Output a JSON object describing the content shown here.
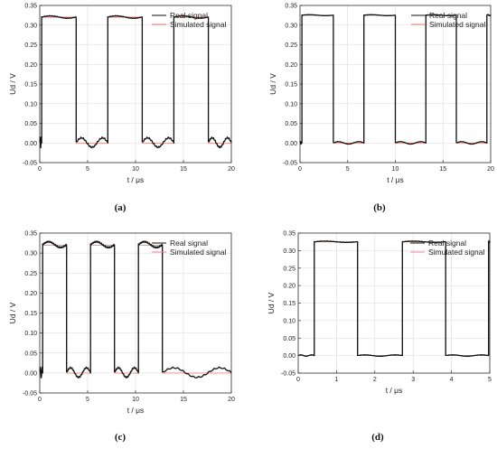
{
  "chart_data": [
    {
      "type": "line",
      "caption": "(a)",
      "xlabel": "t / μs",
      "ylabel": "Ud / V",
      "xlim": [
        0,
        20
      ],
      "ylim": [
        -0.05,
        0.35
      ],
      "xticks": [
        "0",
        "5",
        "10",
        "15",
        "20"
      ],
      "yticks": [
        "-0.05",
        "0.00",
        "0.05",
        "0.10",
        "0.15",
        "0.20",
        "0.25",
        "0.30",
        "0.35"
      ],
      "legend_position": "top-right",
      "signal": {
        "high": 0.32,
        "low": 0.0,
        "period": 6.9,
        "rise_times": [
          0.2,
          7.1,
          14.0
        ],
        "fall_times": [
          3.8,
          10.7,
          17.6
        ],
        "end": 20
      },
      "real_ripple": {
        "high_amplitude": 0.005,
        "low_amplitude": 0.012
      },
      "series": [
        {
          "name": "Real signal",
          "color": "#111111"
        },
        {
          "name": "Simulated signal",
          "color": "#e8867f"
        }
      ]
    },
    {
      "type": "line",
      "caption": "(b)",
      "xlabel": "t / μs",
      "ylabel": "Ud / V",
      "xlim": [
        0,
        20
      ],
      "ylim": [
        -0.05,
        0.35
      ],
      "xticks": [
        "0",
        "5",
        "10",
        "15",
        "20"
      ],
      "yticks": [
        "-0.05",
        "0.00",
        "0.05",
        "0.10",
        "0.15",
        "0.20",
        "0.25",
        "0.30",
        "0.35"
      ],
      "legend_position": "top-right",
      "signal": {
        "high": 0.325,
        "low": 0.0,
        "period": 6.5,
        "rise_times": [
          0.2,
          6.7,
          13.2,
          19.6
        ],
        "fall_times": [
          3.5,
          10.0,
          16.4
        ],
        "end": 20
      },
      "real_ripple": {
        "high_amplitude": 0.002,
        "low_amplitude": 0.003
      },
      "series": [
        {
          "name": "Real signal",
          "color": "#111111"
        },
        {
          "name": "Simulated signal",
          "color": "#e8867f"
        }
      ]
    },
    {
      "type": "line",
      "caption": "(c)",
      "xlabel": "t / μs",
      "ylabel": "Ud / V",
      "xlim": [
        0,
        20
      ],
      "ylim": [
        -0.05,
        0.35
      ],
      "xticks": [
        "0",
        "5",
        "10",
        "15",
        "20"
      ],
      "yticks": [
        "-0.05",
        "0.00",
        "0.05",
        "0.10",
        "0.15",
        "0.20",
        "0.25",
        "0.30",
        "0.35"
      ],
      "legend_position": "top-right",
      "signal": {
        "high": 0.32,
        "low": 0.0,
        "period": 5.0,
        "rise_times": [
          0.3,
          5.3,
          10.3
        ],
        "fall_times": [
          2.8,
          7.8,
          12.8
        ],
        "end": 20
      },
      "real_ripple": {
        "high_amplitude": 0.012,
        "low_amplitude": 0.012
      },
      "series": [
        {
          "name": "Real signal",
          "color": "#111111"
        },
        {
          "name": "Simulated signal",
          "color": "#e8867f"
        }
      ]
    },
    {
      "type": "line",
      "caption": "(d)",
      "xlabel": "t / μs",
      "ylabel": "Ud / V",
      "xlim": [
        0,
        5
      ],
      "ylim": [
        -0.05,
        0.35
      ],
      "xticks": [
        "0",
        "1",
        "2",
        "3",
        "4",
        "5"
      ],
      "yticks": [
        "-0.05",
        "0.00",
        "0.05",
        "0.10",
        "0.15",
        "0.20",
        "0.25",
        "0.30",
        "0.35"
      ],
      "legend_position": "top-right",
      "signal": {
        "high": 0.325,
        "low": 0.0,
        "period": 2.3,
        "rise_times": [
          0.42,
          2.72,
          4.97
        ],
        "fall_times": [
          1.55,
          3.85
        ],
        "end": 5
      },
      "real_ripple": {
        "high_amplitude": 0.003,
        "low_amplitude": 0.002
      },
      "series": [
        {
          "name": "Real signal",
          "color": "#111111"
        },
        {
          "name": "Simulated signal",
          "color": "#e8867f"
        }
      ]
    }
  ]
}
